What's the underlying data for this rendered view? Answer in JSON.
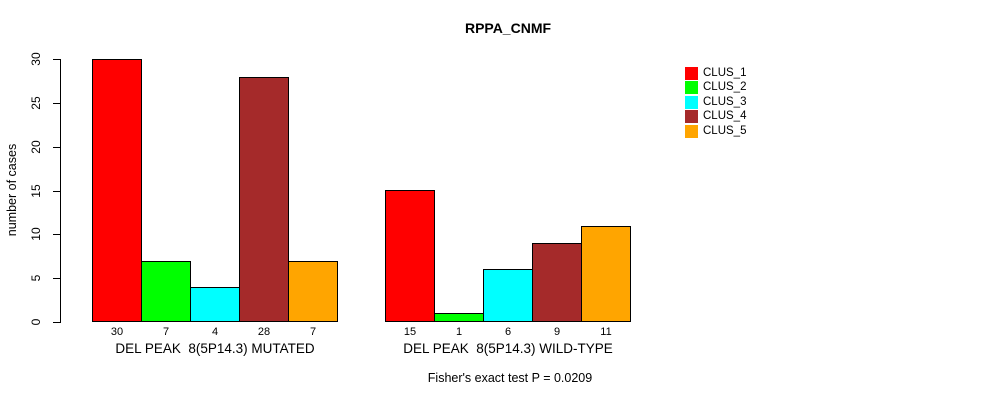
{
  "title": "RPPA_CNMF",
  "y_axis": {
    "label": "number of cases",
    "ticks": [
      "0",
      "5",
      "10",
      "15",
      "20",
      "25",
      "30"
    ]
  },
  "footer": "Fisher's exact test P = 0.0209",
  "legend": {
    "position": "top-right",
    "entries": [
      {
        "label": "CLUS_1",
        "color": "#FF0000"
      },
      {
        "label": "CLUS_2",
        "color": "#00FF00"
      },
      {
        "label": "CLUS_3",
        "color": "#00FFFF"
      },
      {
        "label": "CLUS_4",
        "color": "#A52A2A"
      },
      {
        "label": "CLUS_5",
        "color": "#FFA500"
      }
    ]
  },
  "chart_data": {
    "type": "bar",
    "title": "RPPA_CNMF",
    "xlabel": "",
    "ylabel": "number of cases",
    "ylim": [
      0,
      30
    ],
    "yticks": [
      0,
      5,
      10,
      15,
      20,
      25,
      30
    ],
    "grid": false,
    "legend_position": "top-right",
    "bar_value_labels_shown": true,
    "categories": [
      "DEL PEAK  8(5P14.3) MUTATED",
      "DEL PEAK  8(5P14.3) WILD-TYPE"
    ],
    "series": [
      {
        "name": "CLUS_1",
        "color": "#FF0000",
        "values": [
          30,
          15
        ]
      },
      {
        "name": "CLUS_2",
        "color": "#00FF00",
        "values": [
          7,
          1
        ]
      },
      {
        "name": "CLUS_3",
        "color": "#00FFFF",
        "values": [
          4,
          6
        ]
      },
      {
        "name": "CLUS_4",
        "color": "#A52A2A",
        "values": [
          28,
          9
        ]
      },
      {
        "name": "CLUS_5",
        "color": "#FFA500",
        "values": [
          7,
          11
        ]
      }
    ],
    "annotation": "Fisher's exact test P = 0.0209"
  }
}
